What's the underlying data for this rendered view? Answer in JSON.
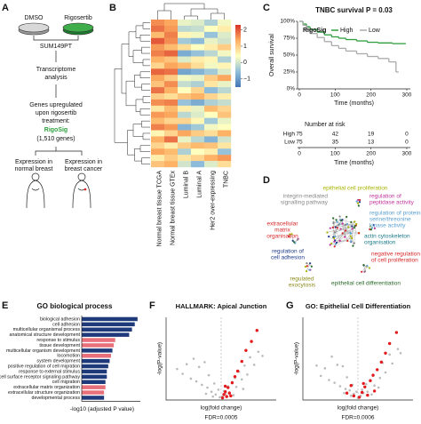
{
  "panel_labels": [
    "A",
    "B",
    "C",
    "D",
    "E",
    "F",
    "G"
  ],
  "schematic": {
    "dmso": "DMSO",
    "treatment": "Rigosertib",
    "cell_line": "SUM149PT",
    "step1": [
      "Transcriptome",
      "analysis"
    ],
    "step2": [
      "Genes upregulated",
      "upon rigosertib",
      "treatment:"
    ],
    "signature": "RigoSig",
    "gene_count": "(1,510 genes)",
    "normal": [
      "Expression in",
      "normal breast"
    ],
    "cancer": [
      "Expression in",
      "breast cancer"
    ]
  },
  "network": {
    "labels": [
      [
        "epithelial cell proliferation"
      ],
      [
        "integrin-mediated",
        "signalling pathway"
      ],
      [
        "regulation of",
        "peptidase activity"
      ],
      [
        "regulation of protein",
        "serine/threonine",
        "kinase activity"
      ],
      [
        "extracellular",
        "matrix",
        "organisation"
      ],
      [
        "actin cytoskeleton",
        "organisation"
      ],
      [
        "regulation of",
        "cell adhesion"
      ],
      [
        "negative regulation",
        "of cell proliferation"
      ],
      [
        "regulated",
        "exocytosis"
      ],
      [
        "epithelial cell differentiation"
      ]
    ]
  },
  "chart_data": [
    {
      "type": "heatmap",
      "columns": [
        "Normal breast tissue TCGA",
        "Normal breast tissue GTEx",
        "Luminal B",
        "Luminal A",
        "Her2 over-expressing",
        "TNBC"
      ],
      "values": [
        [
          1.6,
          1.4,
          0.2,
          0.1,
          -0.3,
          0.3
        ],
        [
          1.8,
          1.5,
          -0.2,
          -0.1,
          0.4,
          0.6
        ],
        [
          1.2,
          1.7,
          0.5,
          0.3,
          -0.5,
          0.1
        ],
        [
          2.0,
          1.6,
          -0.4,
          -0.6,
          0.2,
          0.0
        ],
        [
          1.5,
          1.2,
          0.8,
          0.4,
          0.6,
          1.0
        ],
        [
          1.7,
          1.9,
          -0.8,
          -0.5,
          -0.2,
          0.3
        ],
        [
          1.3,
          1.1,
          0.1,
          0.6,
          0.5,
          -0.3
        ],
        [
          0.9,
          1.4,
          1.2,
          0.8,
          0.3,
          0.5
        ],
        [
          1.9,
          1.8,
          -0.9,
          -0.7,
          -0.4,
          0.1
        ],
        [
          1.4,
          1.0,
          0.3,
          0.2,
          1.0,
          1.4
        ],
        [
          1.1,
          1.6,
          -0.1,
          -0.3,
          0.7,
          0.2
        ],
        [
          1.8,
          1.3,
          0.4,
          0.9,
          -0.6,
          -0.2
        ],
        [
          1.0,
          0.8,
          1.1,
          1.3,
          0.9,
          0.6
        ],
        [
          1.6,
          1.7,
          -0.5,
          -0.8,
          -0.3,
          -0.1
        ],
        [
          0.7,
          1.2,
          0.6,
          0.2,
          1.2,
          0.9
        ],
        [
          1.5,
          1.4,
          -0.2,
          0.1,
          0.4,
          1.1
        ],
        [
          1.2,
          0.9,
          0.9,
          0.5,
          -0.4,
          0.2
        ],
        [
          1.7,
          1.5,
          -0.7,
          -0.4,
          0.3,
          0.4
        ],
        [
          0.5,
          0.9,
          1.4,
          1.0,
          0.8,
          1.3
        ],
        [
          1.3,
          1.8,
          0.2,
          -0.2,
          -0.7,
          0.0
        ],
        [
          0.9,
          0.6,
          1.0,
          1.2,
          1.1,
          0.7
        ],
        [
          1.4,
          1.2,
          -0.3,
          0.4,
          0.6,
          -0.5
        ],
        [
          0.6,
          1.0,
          0.7,
          0.9,
          1.3,
          1.5
        ],
        [
          1.1,
          1.3,
          0.0,
          -0.6,
          0.1,
          0.8
        ]
      ],
      "colormap": [
        "#4575b4",
        "#91bfdb",
        "#ffffbf",
        "#fdae61",
        "#d73027"
      ],
      "clim": [
        -1.5,
        2.3
      ],
      "cticks": [
        2,
        1,
        0,
        {
          "value": -1,
          "label": "−1"
        }
      ]
    },
    {
      "type": "survival",
      "title": "TNBC survival P = 0.03",
      "xlabel": "Time (months)",
      "ylabel": "Overall survival",
      "legend_title": "RigoSig",
      "xlim": [
        -5,
        310
      ],
      "xticks": [
        0,
        100,
        200,
        300
      ],
      "ylim": [
        0,
        100
      ],
      "yticks": [
        {
          "value": 0,
          "label": "0%"
        },
        {
          "value": 25,
          "label": "25%"
        },
        {
          "value": 50,
          "label": "50%"
        },
        {
          "value": 75,
          "label": "75%"
        },
        {
          "value": 100,
          "label": "100%"
        }
      ],
      "series": [
        {
          "name": "High",
          "color": "#2e9e3e",
          "x": [
            0,
            10,
            20,
            30,
            50,
            70,
            90,
            110,
            130,
            160,
            190,
            220,
            260,
            290
          ],
          "values": [
            100,
            96,
            92,
            88,
            84,
            80,
            77,
            75,
            73,
            71,
            69,
            68,
            67,
            67
          ]
        },
        {
          "name": "Low",
          "color": "#aaaaaa",
          "x": [
            0,
            10,
            20,
            30,
            50,
            70,
            90,
            110,
            130,
            160,
            190,
            220,
            250,
            270
          ],
          "values": [
            100,
            94,
            88,
            82,
            76,
            70,
            64,
            60,
            56,
            52,
            48,
            45,
            40,
            25
          ]
        }
      ],
      "risk_table": {
        "title": "Number at risk",
        "rows": [
          {
            "name": "High",
            "values": [
              75,
              42,
              19,
              0
            ]
          },
          {
            "name": "Low",
            "values": [
              75,
              35,
              13,
              0
            ]
          }
        ]
      }
    },
    {
      "type": "hbar",
      "title": "GO biological process",
      "xlabel": "-log10 (adjusted P value)",
      "xlim": [
        0,
        21
      ],
      "categories": [
        "biological adhesion",
        "cell adhesion",
        "multicellular organismal process",
        "anatomical structure development",
        "response to stimulus",
        "tissue development",
        "multicellular organism development",
        "locomotion",
        "system development",
        "positive regulation of cell migration",
        "response to external stimulus",
        "cell surface receptor signaling pathway",
        "cell migration",
        "extracellular matrix organization",
        "extracellular structure organization",
        "developmental process"
      ],
      "values": [
        20,
        19,
        18,
        17,
        12,
        11.5,
        11,
        10.5,
        10,
        9.5,
        9,
        9,
        8.5,
        8.5,
        8,
        8
      ],
      "colors": [
        "#1f3a7a",
        "#1f3a7a",
        "#1f3a7a",
        "#1f3a7a",
        "#e8707a",
        "#e8707a",
        "#1f3a7a",
        "#e8707a",
        "#1f3a7a",
        "#1f3a7a",
        "#1f3a7a",
        "#1f3a7a",
        "#1f3a7a",
        "#e8707a",
        "#e8707a",
        "#1f3a7a"
      ]
    },
    {
      "type": "scatter",
      "title": "HALLMARK: Apical Junction",
      "xlabel": "log(fold change)",
      "ylabel": "-log(P-value)",
      "annotation": "FDR=0.0005",
      "xlim": [
        -4,
        4
      ],
      "ylim": [
        0,
        12
      ],
      "series": [
        {
          "color": "#bbbbbb",
          "x": [
            -3.2,
            -2.8,
            -2.5,
            -2.2,
            -2.0,
            -1.8,
            -1.6,
            -1.4,
            -1.2,
            -1.0,
            -0.9,
            -0.7,
            -0.5,
            -0.4,
            -0.2,
            -0.1,
            0.1,
            0.2,
            0.3,
            0.5,
            0.6,
            0.8,
            1.0,
            1.1,
            1.3,
            1.5,
            1.7,
            1.9,
            2.1,
            2.4,
            2.7,
            3.0,
            -1.1,
            0.9,
            -0.6,
            1.6
          ],
          "values": [
            4.5,
            3.8,
            5.2,
            3.1,
            6.0,
            2.7,
            4.8,
            2.2,
            5.5,
            1.8,
            3.6,
            1.2,
            2.4,
            0.8,
            1.5,
            0.4,
            0.5,
            1.3,
            0.9,
            2.0,
            1.1,
            2.6,
            3.2,
            1.9,
            4.1,
            3.0,
            5.0,
            3.7,
            6.2,
            5.1,
            7.0,
            6.4,
            0.9,
            0.7,
            0.5,
            1.6
          ]
        },
        {
          "color": "#e41a1c",
          "x": [
            0.1,
            0.2,
            0.3,
            0.4,
            0.5,
            0.6,
            0.8,
            1.0,
            1.2,
            1.5,
            1.8,
            2.2,
            2.6,
            0.3,
            0.7
          ],
          "values": [
            0.3,
            0.8,
            1.2,
            0.5,
            1.8,
            1.0,
            2.5,
            3.4,
            4.2,
            5.6,
            7.2,
            8.5,
            10.1,
            2.0,
            0.6
          ]
        }
      ]
    },
    {
      "type": "scatter",
      "title": "GO: Epithelial Cell Differentiation",
      "xlabel": "log(fold change)",
      "ylabel": "-log(P-value)",
      "annotation": "FDR=0.0006",
      "xlim": [
        -4,
        4
      ],
      "ylim": [
        0,
        12
      ],
      "series": [
        {
          "color": "#bbbbbb",
          "x": [
            -3.0,
            -2.7,
            -2.4,
            -2.1,
            -1.9,
            -1.7,
            -1.5,
            -1.3,
            -1.1,
            -0.9,
            -0.8,
            -0.6,
            -0.4,
            -0.3,
            -0.1,
            0.0,
            0.2,
            0.3,
            0.4,
            0.6,
            0.7,
            0.9,
            1.1,
            1.2,
            1.4,
            1.6,
            1.8,
            2.0,
            2.3,
            2.5,
            2.9,
            3.1,
            -1.0,
            1.0,
            -0.5,
            1.5
          ],
          "values": [
            5.0,
            3.5,
            4.6,
            2.9,
            6.3,
            2.5,
            5.1,
            2.0,
            4.9,
            1.6,
            3.3,
            1.4,
            2.2,
            0.9,
            1.2,
            0.3,
            0.6,
            1.5,
            1.0,
            2.3,
            1.2,
            2.9,
            3.5,
            2.1,
            4.4,
            3.2,
            5.4,
            4.0,
            6.6,
            5.3,
            7.4,
            6.8,
            1.0,
            0.8,
            0.6,
            1.8
          ]
        },
        {
          "color": "#e41a1c",
          "x": [
            -0.8,
            -0.3,
            0.1,
            0.3,
            0.5,
            0.7,
            0.9,
            1.1,
            1.4,
            1.7,
            2.0,
            2.3,
            2.8,
            0.4,
            1.2,
            -0.5
          ],
          "values": [
            1.0,
            0.6,
            0.4,
            1.1,
            1.9,
            0.7,
            2.8,
            3.6,
            4.4,
            5.5,
            6.8,
            8.2,
            9.8,
            2.4,
            1.3,
            2.1
          ]
        }
      ]
    }
  ]
}
